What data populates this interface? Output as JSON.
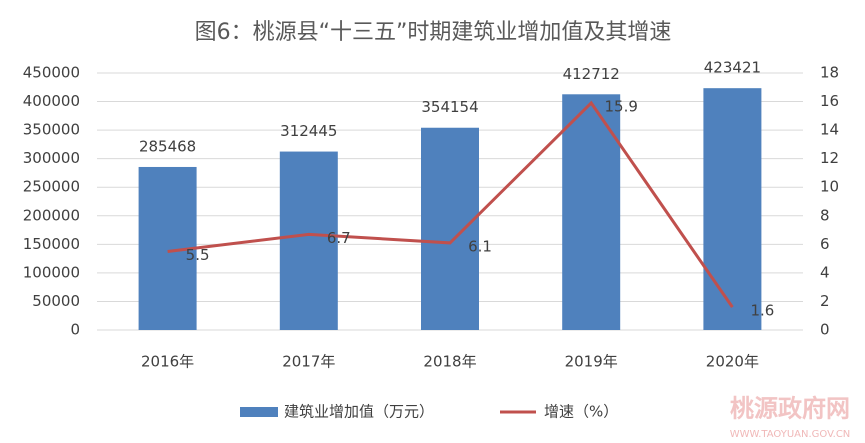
{
  "chart_data": {
    "type": "bar",
    "title": "图6：桃源县“十三五”时期建筑业增加值及其增速",
    "categories": [
      "2016年",
      "2017年",
      "2018年",
      "2019年",
      "2020年"
    ],
    "series": [
      {
        "name": "建筑业增加值（万元）",
        "type": "bar",
        "color": "#4f81bd",
        "values": [
          285468,
          312445,
          354154,
          412712,
          423421
        ]
      },
      {
        "name": "增速（%）",
        "type": "line",
        "axis": "y2",
        "color": "#c0504d",
        "values": [
          5.5,
          6.7,
          6.1,
          15.9,
          1.6
        ]
      }
    ],
    "ylim": [
      0,
      450000
    ],
    "yticks": [
      0,
      50000,
      100000,
      150000,
      200000,
      250000,
      300000,
      350000,
      400000,
      450000
    ],
    "y2lim": [
      0,
      18
    ],
    "y2ticks": [
      0,
      2,
      4,
      6,
      8,
      10,
      12,
      14,
      16,
      18
    ],
    "grid": true,
    "legend": "bottom",
    "data_labels": true
  },
  "watermark": {
    "title": "桃源政府网",
    "url": "WWW.TAOYUAN.GOV.CN"
  }
}
